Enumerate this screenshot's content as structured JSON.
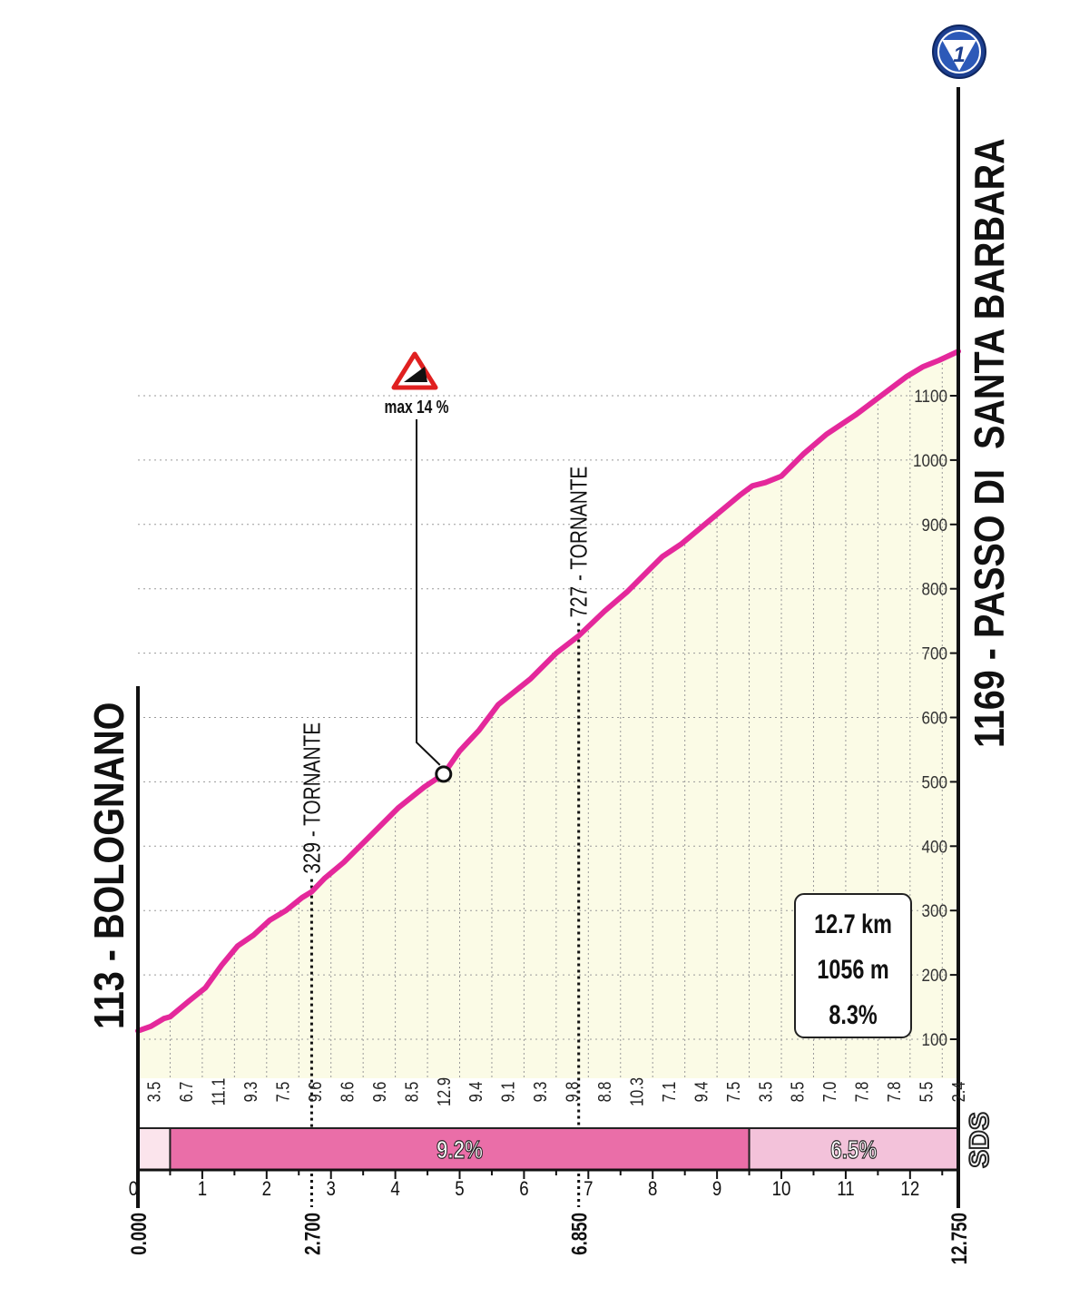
{
  "chart_data": {
    "type": "area",
    "title": "",
    "xlabel": "",
    "ylabel": "",
    "xlim": [
      0,
      12.75
    ],
    "ylim": [
      0,
      1200
    ],
    "grid": true,
    "start": {
      "label": "113 - BOLOGNANO",
      "altitude": 113,
      "km_label": "0.000"
    },
    "finish": {
      "label": "1169 - PASSO DI  SANTA BARBARA",
      "altitude": 1169,
      "km_label": "12.750",
      "badge": "1"
    },
    "x_ticks": [
      0,
      1,
      2,
      3,
      4,
      5,
      6,
      7,
      8,
      9,
      10,
      11,
      12
    ],
    "y_ticks": [
      100,
      200,
      300,
      400,
      500,
      600,
      700,
      800,
      900,
      1000,
      1100
    ],
    "profile": {
      "x": [
        0,
        0.2,
        0.4,
        0.5,
        0.8,
        1.05,
        1.3,
        1.55,
        1.8,
        2.05,
        2.3,
        2.55,
        2.7,
        2.9,
        3.2,
        3.55,
        4.05,
        4.45,
        4.75,
        5.0,
        5.3,
        5.6,
        6.1,
        6.5,
        6.85,
        7.25,
        7.6,
        7.95,
        8.15,
        8.45,
        8.75,
        9.05,
        9.35,
        9.55,
        9.75,
        10.0,
        10.35,
        10.7,
        11.15,
        11.55,
        11.95,
        12.2,
        12.45,
        12.75
      ],
      "y": [
        113,
        120,
        132,
        135,
        160,
        180,
        215,
        245,
        262,
        285,
        300,
        320,
        329,
        350,
        375,
        410,
        460,
        492,
        512,
        548,
        580,
        620,
        660,
        700,
        727,
        765,
        795,
        830,
        850,
        870,
        895,
        920,
        945,
        960,
        965,
        975,
        1010,
        1040,
        1070,
        1100,
        1130,
        1145,
        1155,
        1169
      ]
    },
    "km_gradients": [
      "3.5",
      "6.7",
      "11.1",
      "9.3",
      "7.5",
      "9.6",
      "8.6",
      "9.6",
      "8.5",
      "12.9",
      "9.4",
      "9.1",
      "9.3",
      "9.8",
      "8.8",
      "10.3",
      "7.1",
      "9.4",
      "7.5",
      "3.5",
      "8.5",
      "7.0",
      "7.8",
      "7.8",
      "5.5",
      "2.4"
    ],
    "segments": [
      {
        "from": 0,
        "to": 0.5,
        "label": "",
        "color": "#fbe4ec"
      },
      {
        "from": 0.5,
        "to": 9.5,
        "label": "9.2%",
        "color": "#ea6ea8"
      },
      {
        "from": 9.5,
        "to": 12.75,
        "label": "6.5%",
        "color": "#f3c2da"
      }
    ],
    "annotations": [
      {
        "x": 2.7,
        "altitude": 329,
        "label": "329 - TORNANTE",
        "km_label": "2.700"
      },
      {
        "x": 6.85,
        "altitude": 727,
        "label": "727 - TORNANTE",
        "km_label": "6.850"
      }
    ],
    "max_gradient": {
      "x": 4.75,
      "altitude": 512,
      "label": "max 14 %"
    },
    "summary": {
      "distance": "12.7 km",
      "gain": "1056 m",
      "avg": "8.3%"
    },
    "sponsor": "SDS",
    "colors": {
      "line": "#e4289b",
      "fill": "#fbfbe6",
      "grid": "#9a9a9a",
      "badge": "#1d3f8f",
      "warning": "#e02020"
    }
  }
}
